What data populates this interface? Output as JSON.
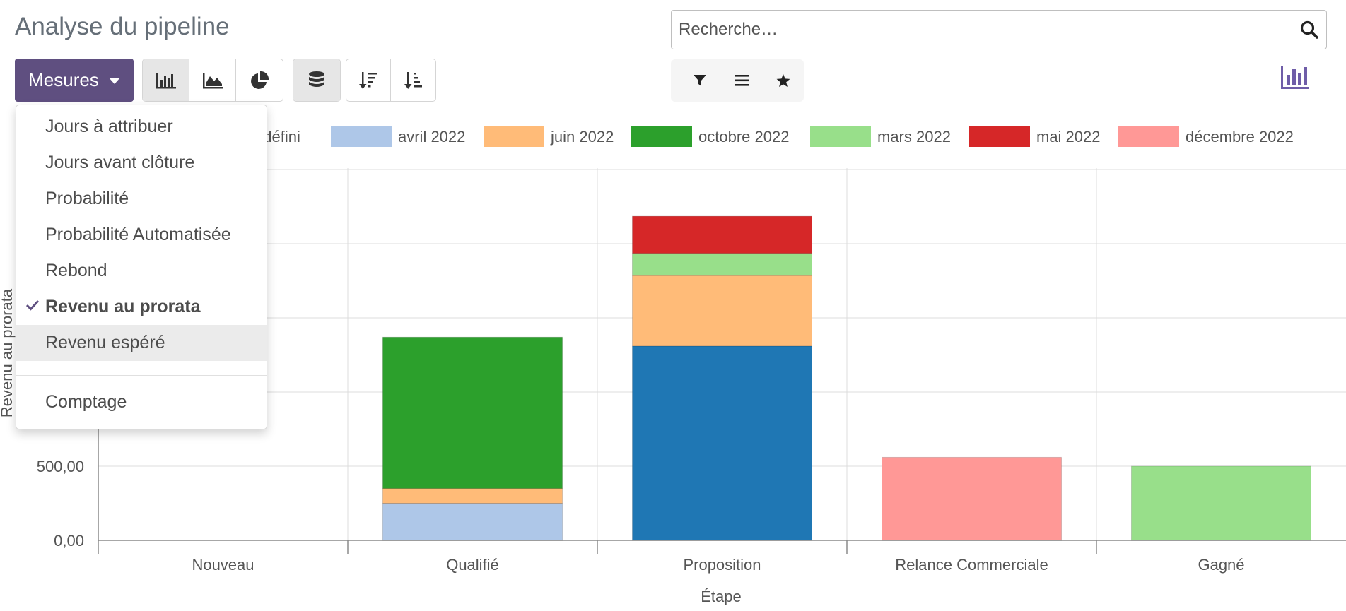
{
  "header": {
    "title": "Analyse du pipeline"
  },
  "toolbar": {
    "measures_label": "Mesures",
    "chart_types": [
      "bar-chart-icon",
      "line-chart-icon",
      "pie-chart-icon"
    ],
    "active_chart_type": "bar",
    "stacked_active": true
  },
  "search": {
    "placeholder": "Recherche…"
  },
  "measures_menu": {
    "items": [
      {
        "label": "Jours à attribuer",
        "selected": false
      },
      {
        "label": "Jours avant clôture",
        "selected": false
      },
      {
        "label": "Probabilité",
        "selected": false
      },
      {
        "label": "Probabilité Automatisée",
        "selected": false
      },
      {
        "label": "Rebond",
        "selected": false
      },
      {
        "label": "Revenu au prorata",
        "selected": true
      },
      {
        "label": "Revenu espéré",
        "selected": false,
        "hovered": true
      }
    ],
    "count_label": "Comptage"
  },
  "colors": {
    "brand": "#5f4f80",
    "accent_icon": "#6f5da8"
  },
  "chart_data": {
    "type": "bar",
    "stacked": true,
    "categories": [
      "Nouveau",
      "Qualifié",
      "Proposition",
      "Relance Commerciale",
      "Gagné"
    ],
    "xlabel": "Étape",
    "ylabel": "Revenu au prorata",
    "ylim": [
      0,
      2500
    ],
    "ytick_labels": [
      "0,00",
      "500,00"
    ],
    "grid": true,
    "legend_position": "top",
    "legend_partial_label": "ndéfini",
    "series": [
      {
        "name": "Indéfini",
        "color": "#1f77b4",
        "values": [
          0,
          0,
          1310,
          0,
          0
        ]
      },
      {
        "name": "avril 2022",
        "color": "#aec7e8",
        "values": [
          0,
          250,
          0,
          0,
          0
        ]
      },
      {
        "name": "juin 2022",
        "color": "#ffbb78",
        "values": [
          0,
          100,
          475,
          0,
          0
        ]
      },
      {
        "name": "octobre 2022",
        "color": "#2ca02c",
        "values": [
          0,
          1020,
          0,
          0,
          0
        ]
      },
      {
        "name": "mars 2022",
        "color": "#98df8a",
        "values": [
          0,
          0,
          150,
          0,
          500
        ]
      },
      {
        "name": "mai 2022",
        "color": "#d62728",
        "values": [
          0,
          0,
          250,
          0,
          0
        ]
      },
      {
        "name": "décembre 2022",
        "color": "#ff9896",
        "values": [
          0,
          0,
          0,
          560,
          0
        ]
      }
    ]
  }
}
